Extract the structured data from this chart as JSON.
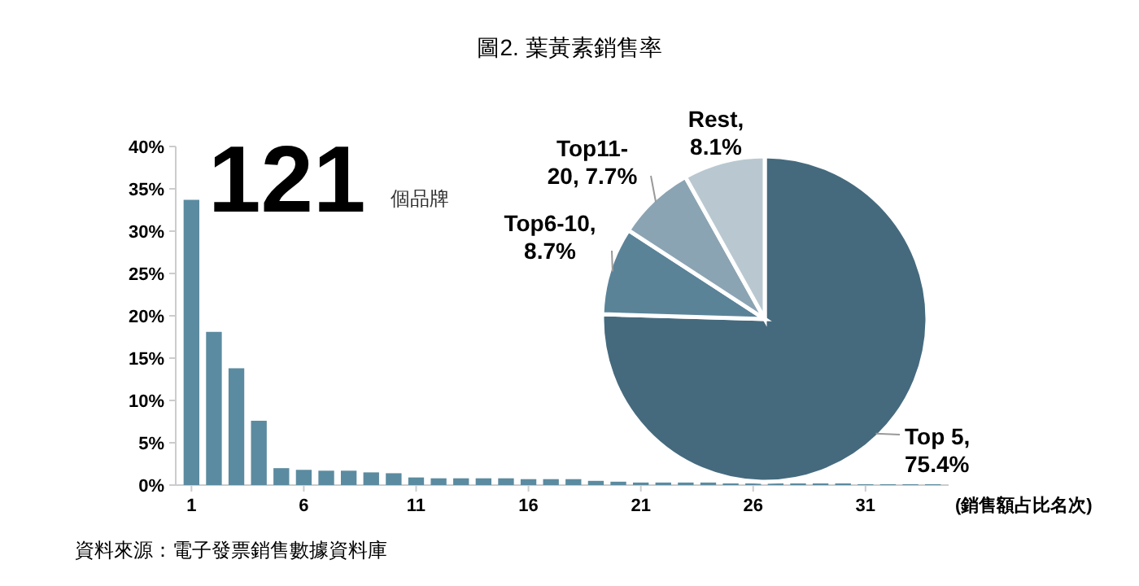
{
  "chart_data": [
    {
      "type": "bar",
      "title": "圖2. 葉黃素銷售率",
      "xlabel": "(銷售額占比名次)",
      "annotations": [
        "121",
        "個品牌",
        "資料來源：電子發票銷售數據資料庫"
      ],
      "x": [
        1,
        2,
        3,
        4,
        5,
        6,
        7,
        8,
        9,
        10,
        11,
        12,
        13,
        14,
        15,
        16,
        17,
        18,
        19,
        20,
        21,
        22,
        23,
        24,
        25,
        26,
        27,
        28,
        29,
        30,
        31,
        32,
        33,
        34
      ],
      "xlim": [
        0.3,
        34.7
      ],
      "xticks": [
        1,
        6,
        11,
        16,
        21,
        26,
        31
      ],
      "values": [
        33.7,
        18.1,
        13.8,
        7.6,
        2.0,
        1.8,
        1.7,
        1.7,
        1.5,
        1.4,
        0.9,
        0.8,
        0.8,
        0.8,
        0.8,
        0.7,
        0.7,
        0.7,
        0.5,
        0.4,
        0.3,
        0.3,
        0.3,
        0.3,
        0.2,
        0.2,
        0.2,
        0.2,
        0.2,
        0.2,
        0.1,
        0.1,
        0.1,
        0.1
      ],
      "color": "#5b8ba0",
      "ylim": [
        0,
        40
      ],
      "yticks": [
        {
          "value": 0,
          "label": "0%"
        },
        {
          "value": 5,
          "label": "5%"
        },
        {
          "value": 10,
          "label": "10%"
        },
        {
          "value": 15,
          "label": "15%"
        },
        {
          "value": 20,
          "label": "20%"
        },
        {
          "value": 25,
          "label": "25%"
        },
        {
          "value": 30,
          "label": "30%"
        },
        {
          "value": 35,
          "label": "35%"
        },
        {
          "value": 40,
          "label": "40%"
        }
      ]
    },
    {
      "type": "pie",
      "categories": [
        "Top 5",
        "Top6-10",
        "Top11-20",
        "Rest"
      ],
      "values": [
        75.4,
        8.7,
        7.7,
        8.1
      ],
      "colors": [
        "#456a7e",
        "#5a8398",
        "#8ba4b3",
        "#b9c8d0"
      ],
      "value_labels": [
        ", 75.4%",
        ", 8.7%",
        ", 7.7%",
        ", 8.1%"
      ]
    }
  ]
}
